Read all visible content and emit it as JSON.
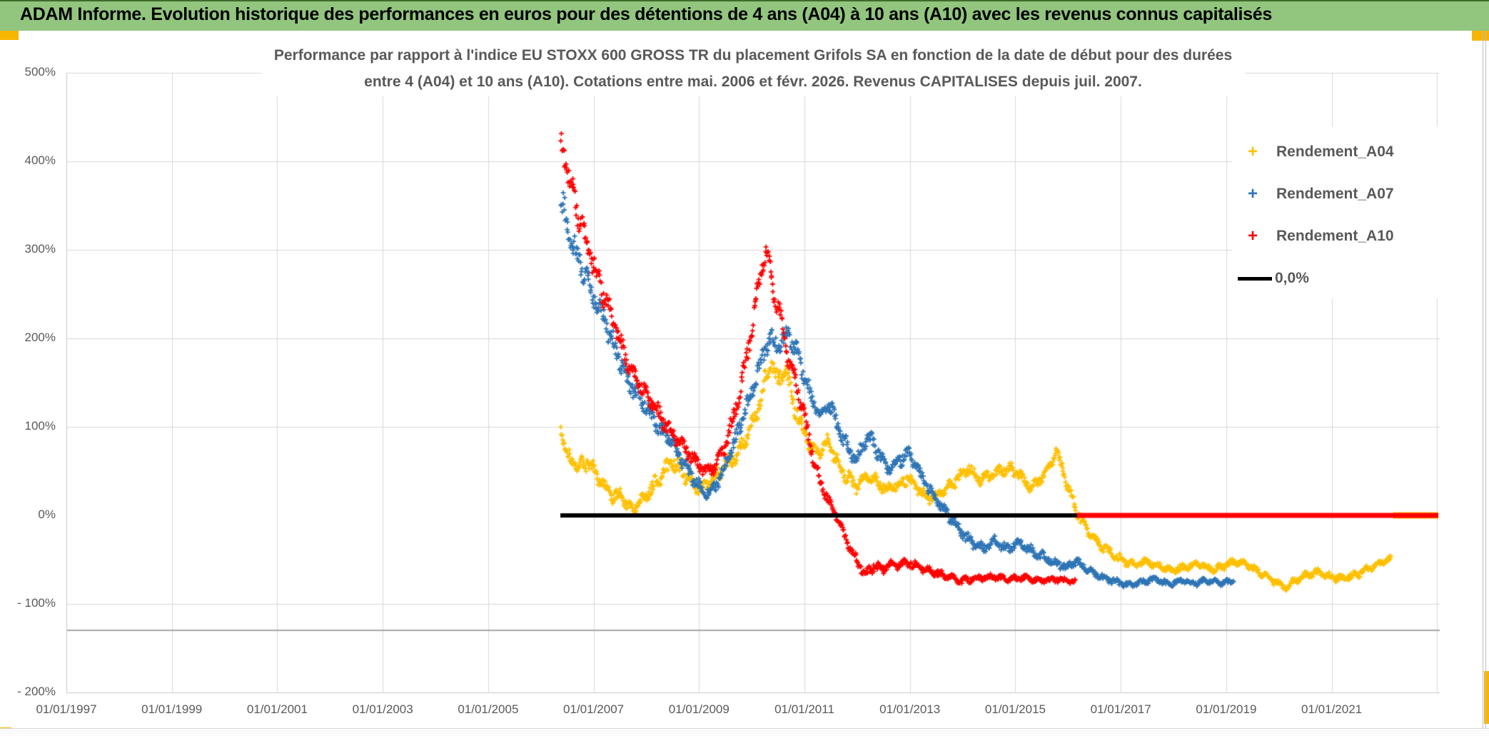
{
  "window_title": "ADAM Informe. Evolution historique des performances en euros pour des détentions de 4 ans (A04) à 10 ans (A10) avec les revenus connus capitalisés",
  "colors": {
    "titlebar_green": "#92C57E",
    "gold_accent": "#F7B500",
    "series_a04": "#FFC000",
    "series_a07": "#2E75B6",
    "series_a10": "#FF0000",
    "zero_line": "#000000",
    "gridline": "#D9D9D9",
    "gridline_dark": "#A6A6A6",
    "axis_border": "#C9C9C9",
    "label_gray": "#595959"
  },
  "chart_data": {
    "type": "scatter",
    "title_lines": [
      "Performance par rapport à l'indice EU STOXX 600 GROSS TR  du placement Grifols SA en fonction de la date de début pour des durées",
      "entre 4 (A04) et 10 ans (A10). Cotations entre mai. 2006 et févr. 2026. Revenus CAPITALISES depuis juil. 2007."
    ],
    "x_axis": {
      "min_year": 1997,
      "max_year": 2023.05,
      "tick_years": [
        1997,
        1999,
        2001,
        2003,
        2005,
        2007,
        2009,
        2011,
        2013,
        2015,
        2017,
        2019,
        2021
      ],
      "tick_labels": [
        "01/01/1997",
        "01/01/1999",
        "01/01/2001",
        "01/01/2003",
        "01/01/2005",
        "01/01/2007",
        "01/01/2009",
        "01/01/2011",
        "01/01/2013",
        "01/01/2015",
        "01/01/2017",
        "01/01/2019",
        "01/01/2021"
      ],
      "gridline_years": [
        1997,
        1999,
        2001,
        2003,
        2005,
        2007,
        2009,
        2011,
        2013,
        2015,
        2017,
        2019,
        2021,
        2023
      ]
    },
    "y_axis": {
      "min_pct": -200,
      "max_pct": 500,
      "tick_pcts": [
        500,
        400,
        300,
        200,
        100,
        0,
        -100,
        -200
      ],
      "tick_labels": [
        "500%",
        "400%",
        "300%",
        "200%",
        "100%",
        "0%",
        "- 100%",
        "- 200%"
      ],
      "gridline_pcts": [
        500,
        400,
        300,
        200,
        100,
        -100,
        -200
      ],
      "extra_dark_gridline_pct": -130
    },
    "legend": [
      {
        "label": "Rendement_A04",
        "marker": "plus",
        "color": "#FFC000"
      },
      {
        "label": "Rendement_A07",
        "marker": "plus",
        "color": "#2E75B6"
      },
      {
        "label": "Rendement_A10",
        "marker": "plus",
        "color": "#FF0000"
      },
      {
        "label": "0,0%",
        "marker": "line",
        "color": "#000000"
      }
    ],
    "series": [
      {
        "name": "Rendement_A04",
        "color": "#FFC000",
        "marker": "plus",
        "anchors": [
          [
            2006.38,
            100,
            4
          ],
          [
            2006.44,
            80,
            9
          ],
          [
            2006.55,
            62,
            11
          ],
          [
            2006.7,
            56,
            11
          ],
          [
            2006.9,
            62,
            12
          ],
          [
            2007.05,
            46,
            11
          ],
          [
            2007.2,
            34,
            10
          ],
          [
            2007.38,
            20,
            9
          ],
          [
            2007.5,
            24,
            9
          ],
          [
            2007.62,
            12,
            7
          ],
          [
            2007.78,
            8,
            6
          ],
          [
            2007.92,
            18,
            8
          ],
          [
            2008.1,
            30,
            10
          ],
          [
            2008.3,
            47,
            11
          ],
          [
            2008.5,
            60,
            13
          ],
          [
            2008.65,
            52,
            12
          ],
          [
            2008.8,
            42,
            11
          ],
          [
            2009.0,
            30,
            9
          ],
          [
            2009.2,
            37,
            9
          ],
          [
            2009.45,
            52,
            11
          ],
          [
            2009.7,
            68,
            11
          ],
          [
            2009.9,
            88,
            12
          ],
          [
            2010.1,
            118,
            14
          ],
          [
            2010.25,
            152,
            14
          ],
          [
            2010.38,
            172,
            13
          ],
          [
            2010.5,
            150,
            15
          ],
          [
            2010.63,
            170,
            12
          ],
          [
            2010.78,
            128,
            14
          ],
          [
            2010.95,
            100,
            12
          ],
          [
            2011.1,
            80,
            11
          ],
          [
            2011.3,
            70,
            10
          ],
          [
            2011.45,
            85,
            9
          ],
          [
            2011.6,
            62,
            10
          ],
          [
            2011.8,
            44,
            11
          ],
          [
            2012.0,
            32,
            9
          ],
          [
            2012.18,
            46,
            9
          ],
          [
            2012.35,
            40,
            8
          ],
          [
            2012.55,
            28,
            8
          ],
          [
            2012.75,
            34,
            8
          ],
          [
            2012.95,
            42,
            8
          ],
          [
            2013.15,
            30,
            8
          ],
          [
            2013.35,
            18,
            7
          ],
          [
            2013.55,
            24,
            7
          ],
          [
            2013.75,
            32,
            8
          ],
          [
            2013.95,
            44,
            9
          ],
          [
            2014.12,
            54,
            8
          ],
          [
            2014.3,
            40,
            8
          ],
          [
            2014.5,
            44,
            8
          ],
          [
            2014.7,
            50,
            8
          ],
          [
            2014.9,
            54,
            9
          ],
          [
            2015.1,
            44,
            8
          ],
          [
            2015.3,
            32,
            8
          ],
          [
            2015.5,
            42,
            7
          ],
          [
            2015.68,
            58,
            7
          ],
          [
            2015.78,
            74,
            6
          ],
          [
            2015.9,
            52,
            9
          ],
          [
            2016.05,
            22,
            9
          ],
          [
            2016.2,
            0,
            8
          ],
          [
            2016.4,
            -18,
            8
          ],
          [
            2016.6,
            -32,
            7
          ],
          [
            2016.8,
            -42,
            6
          ],
          [
            2017.0,
            -50,
            6
          ],
          [
            2017.25,
            -56,
            5
          ],
          [
            2017.5,
            -52,
            5
          ],
          [
            2017.75,
            -58,
            5
          ],
          [
            2018.0,
            -62,
            5
          ],
          [
            2018.25,
            -58,
            5
          ],
          [
            2018.5,
            -55,
            5
          ],
          [
            2018.75,
            -62,
            5
          ],
          [
            2019.0,
            -56,
            5
          ],
          [
            2019.2,
            -52,
            5
          ],
          [
            2019.45,
            -58,
            5
          ],
          [
            2019.7,
            -66,
            5
          ],
          [
            2019.9,
            -74,
            5
          ],
          [
            2020.1,
            -82,
            5
          ],
          [
            2020.3,
            -74,
            5
          ],
          [
            2020.5,
            -68,
            5
          ],
          [
            2020.75,
            -64,
            5
          ],
          [
            2021.0,
            -70,
            5
          ],
          [
            2021.25,
            -71,
            5
          ],
          [
            2021.5,
            -66,
            5
          ],
          [
            2021.75,
            -58,
            5
          ],
          [
            2021.95,
            -53,
            4
          ],
          [
            2022.12,
            -49,
            4
          ]
        ],
        "zero_tail": [
          2022.17,
          2023.02
        ],
        "tail_width": 9
      },
      {
        "name": "Rendement_A07",
        "color": "#2E75B6",
        "marker": "plus",
        "anchors": [
          [
            2006.38,
            352,
            24
          ],
          [
            2006.5,
            330,
            22
          ],
          [
            2006.62,
            305,
            20
          ],
          [
            2006.76,
            282,
            18
          ],
          [
            2006.9,
            262,
            18
          ],
          [
            2007.05,
            242,
            18
          ],
          [
            2007.2,
            222,
            16
          ],
          [
            2007.35,
            198,
            15
          ],
          [
            2007.5,
            175,
            14
          ],
          [
            2007.65,
            152,
            13
          ],
          [
            2007.8,
            140,
            12
          ],
          [
            2007.95,
            128,
            12
          ],
          [
            2008.1,
            112,
            12
          ],
          [
            2008.28,
            96,
            12
          ],
          [
            2008.45,
            86,
            11
          ],
          [
            2008.62,
            68,
            11
          ],
          [
            2008.8,
            50,
            10
          ],
          [
            2009.0,
            33,
            9
          ],
          [
            2009.18,
            25,
            8
          ],
          [
            2009.38,
            40,
            10
          ],
          [
            2009.58,
            68,
            12
          ],
          [
            2009.78,
            100,
            13
          ],
          [
            2009.98,
            138,
            14
          ],
          [
            2010.18,
            175,
            14
          ],
          [
            2010.35,
            202,
            12
          ],
          [
            2010.5,
            190,
            13
          ],
          [
            2010.68,
            206,
            12
          ],
          [
            2010.85,
            185,
            14
          ],
          [
            2011.0,
            155,
            14
          ],
          [
            2011.15,
            130,
            12
          ],
          [
            2011.3,
            110,
            12
          ],
          [
            2011.48,
            126,
            12
          ],
          [
            2011.65,
            98,
            12
          ],
          [
            2011.82,
            76,
            11
          ],
          [
            2012.0,
            64,
            10
          ],
          [
            2012.2,
            92,
            13
          ],
          [
            2012.4,
            72,
            11
          ],
          [
            2012.58,
            54,
            10
          ],
          [
            2012.78,
            62,
            10
          ],
          [
            2012.98,
            70,
            10
          ],
          [
            2013.18,
            48,
            9
          ],
          [
            2013.38,
            28,
            8
          ],
          [
            2013.58,
            12,
            8
          ],
          [
            2013.78,
            -4,
            8
          ],
          [
            2013.98,
            -18,
            8
          ],
          [
            2014.18,
            -32,
            8
          ],
          [
            2014.4,
            -38,
            7
          ],
          [
            2014.6,
            -28,
            7
          ],
          [
            2014.85,
            -38,
            7
          ],
          [
            2015.05,
            -30,
            7
          ],
          [
            2015.28,
            -39,
            7
          ],
          [
            2015.5,
            -46,
            7
          ],
          [
            2015.75,
            -53,
            6
          ],
          [
            2015.95,
            -59,
            6
          ],
          [
            2016.15,
            -52,
            6
          ],
          [
            2016.4,
            -62,
            6
          ],
          [
            2016.65,
            -70,
            5
          ],
          [
            2016.9,
            -75,
            5
          ],
          [
            2017.15,
            -79,
            4
          ],
          [
            2017.4,
            -75,
            4
          ],
          [
            2017.65,
            -72,
            4
          ],
          [
            2017.9,
            -78,
            4
          ],
          [
            2018.15,
            -74,
            4
          ],
          [
            2018.4,
            -77,
            4
          ],
          [
            2018.65,
            -73,
            4
          ],
          [
            2018.9,
            -76,
            4
          ],
          [
            2019.08,
            -75,
            3
          ],
          [
            2019.14,
            -74,
            3
          ]
        ]
      },
      {
        "name": "Rendement_A10",
        "color": "#FF0000",
        "marker": "plus",
        "anchors": [
          [
            2006.38,
            422,
            16
          ],
          [
            2006.48,
            398,
            18
          ],
          [
            2006.6,
            368,
            19
          ],
          [
            2006.73,
            335,
            19
          ],
          [
            2006.88,
            308,
            17
          ],
          [
            2007.02,
            280,
            17
          ],
          [
            2007.17,
            252,
            17
          ],
          [
            2007.32,
            228,
            15
          ],
          [
            2007.47,
            203,
            14
          ],
          [
            2007.62,
            175,
            13
          ],
          [
            2007.78,
            158,
            12
          ],
          [
            2007.93,
            143,
            12
          ],
          [
            2008.1,
            128,
            12
          ],
          [
            2008.3,
            108,
            12
          ],
          [
            2008.5,
            92,
            11
          ],
          [
            2008.7,
            78,
            10
          ],
          [
            2008.9,
            63,
            10
          ],
          [
            2009.1,
            50,
            9
          ],
          [
            2009.28,
            54,
            9
          ],
          [
            2009.48,
            75,
            11
          ],
          [
            2009.66,
            112,
            13
          ],
          [
            2009.82,
            152,
            15
          ],
          [
            2009.96,
            198,
            16
          ],
          [
            2010.08,
            240,
            16
          ],
          [
            2010.2,
            282,
            14
          ],
          [
            2010.28,
            298,
            13
          ],
          [
            2010.38,
            268,
            16
          ],
          [
            2010.52,
            228,
            17
          ],
          [
            2010.66,
            188,
            15
          ],
          [
            2010.82,
            155,
            14
          ],
          [
            2010.98,
            115,
            14
          ],
          [
            2011.13,
            75,
            12
          ],
          [
            2011.28,
            40,
            10
          ],
          [
            2011.43,
            20,
            8
          ],
          [
            2011.58,
            3,
            6
          ],
          [
            2011.72,
            -17,
            7
          ],
          [
            2011.87,
            -37,
            7
          ],
          [
            2012.02,
            -54,
            7
          ],
          [
            2012.17,
            -66,
            7
          ],
          [
            2012.32,
            -57,
            7
          ],
          [
            2012.48,
            -61,
            7
          ],
          [
            2012.64,
            -53,
            6
          ],
          [
            2012.8,
            -56,
            6
          ],
          [
            2013.0,
            -54,
            6
          ],
          [
            2013.2,
            -59,
            6
          ],
          [
            2013.4,
            -63,
            6
          ],
          [
            2013.6,
            -67,
            5
          ],
          [
            2013.8,
            -71,
            5
          ],
          [
            2014.0,
            -74,
            5
          ],
          [
            2014.3,
            -71,
            4
          ],
          [
            2014.6,
            -69,
            4
          ],
          [
            2014.9,
            -72,
            4
          ],
          [
            2015.2,
            -70,
            4
          ],
          [
            2015.5,
            -74,
            4
          ],
          [
            2015.8,
            -72,
            4
          ],
          [
            2016.0,
            -74,
            3
          ],
          [
            2016.14,
            -75,
            3
          ]
        ],
        "zero_tail": [
          2016.17,
          2023.02
        ],
        "tail_width": 7
      },
      {
        "name": "0,0%",
        "color": "#000000",
        "type": "line",
        "points": [
          [
            2006.37,
            0
          ],
          [
            2023.02,
            0
          ]
        ],
        "width": 6
      }
    ]
  }
}
